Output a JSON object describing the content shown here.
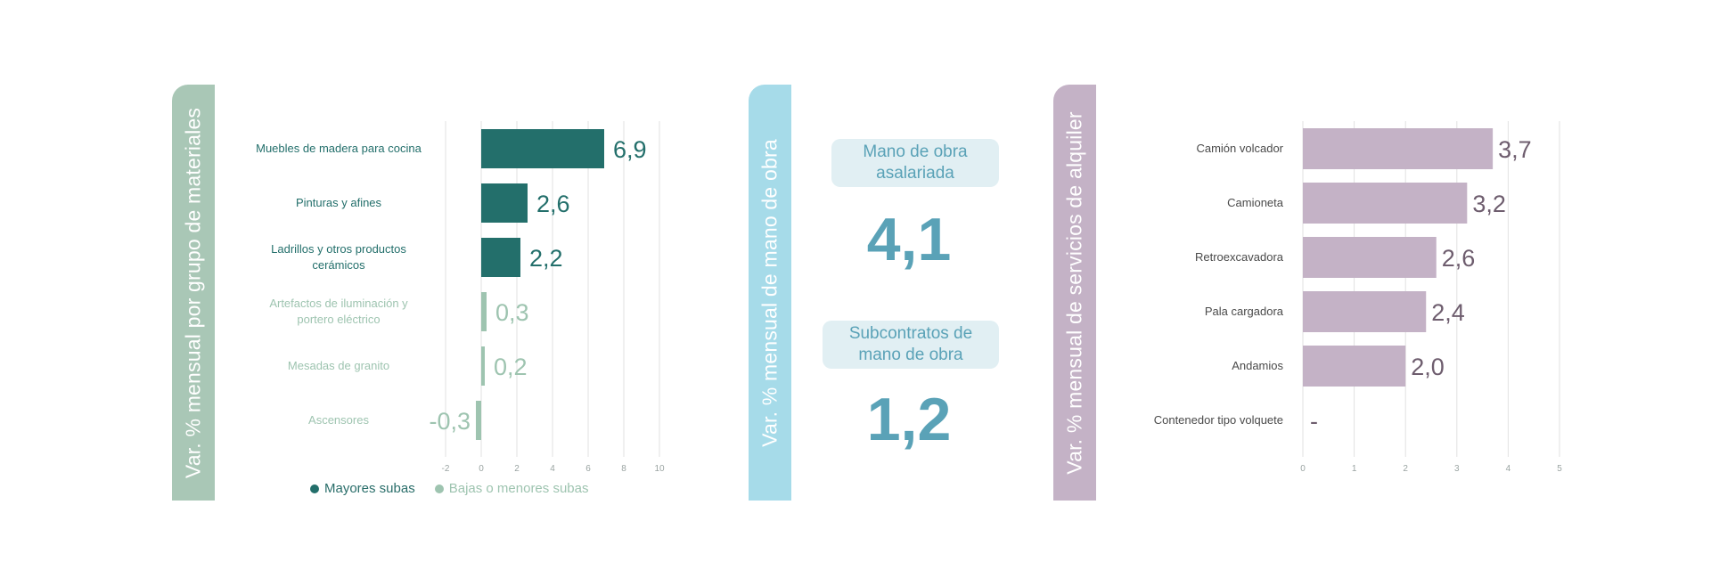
{
  "colors": {
    "green_dark": "#236f6b",
    "green_light": "#9ec4b0",
    "green_tab": "#a9c7b6",
    "blue_tab": "#a6dbe9",
    "blue_text": "#5aa2b7",
    "pill_bg": "#e1eff3",
    "purple_bar": "#c4b2c6",
    "purple_tab": "#c4b2c6",
    "purple_text": "#6e5d6e",
    "grid": "#e2e2e2"
  },
  "panels": {
    "materials_title": "Var. % mensual por grupo de materiales",
    "labor_title": "Var. % mensual de mano de obra",
    "rental_title": "Var. % mensual de servicios de alquiler"
  },
  "labor": {
    "salaried_label": "Mano de obra asalariada",
    "salaried_value": "4,1",
    "subcontract_label": "Subcontratos de mano de obra",
    "subcontract_value": "1,2"
  },
  "legend": {
    "major": "Mayores subas",
    "minor": "Bajas o menores subas"
  },
  "chart_data": [
    {
      "type": "bar",
      "orientation": "horizontal",
      "categories": [
        "Muebles de madera para cocina",
        "Pinturas y afines",
        "Ladrillos y otros productos cerámicos",
        "Artefactos de iluminación y portero eléctrico",
        "Mesadas de granito",
        "Ascensores"
      ],
      "category_lines": [
        [
          "Muebles de madera para cocina"
        ],
        [
          "Pinturas y afines"
        ],
        [
          "Ladrillos y otros productos",
          "cerámicos"
        ],
        [
          "Artefactos de iluminación y",
          "portero eléctrico"
        ],
        [
          "Mesadas de granito"
        ],
        [
          "Ascensores"
        ]
      ],
      "values": [
        6.9,
        2.6,
        2.2,
        0.3,
        0.2,
        -0.3
      ],
      "value_labels": [
        "6,9",
        "2,6",
        "2,2",
        "0,3",
        "0,2",
        "-0,3"
      ],
      "groups": [
        "major",
        "major",
        "major",
        "minor",
        "minor",
        "minor"
      ],
      "xlim": [
        -2,
        10
      ],
      "xticks": [
        -2,
        0,
        2,
        4,
        6,
        8,
        10
      ],
      "xtick_labels": [
        "-2",
        "0",
        "2",
        "4",
        "6",
        "8",
        "10"
      ],
      "grid": true,
      "legend_position": "bottom"
    },
    {
      "type": "bar",
      "orientation": "horizontal",
      "categories": [
        "Camión volcador",
        "Camioneta",
        "Retroexcavadora",
        "Pala cargadora",
        "Andamios",
        "Contenedor tipo volquete"
      ],
      "values": [
        3.7,
        3.2,
        2.6,
        2.4,
        2.0,
        null
      ],
      "value_labels": [
        "3,7",
        "3,2",
        "2,6",
        "2,4",
        "2,0",
        "-"
      ],
      "xlim": [
        0,
        5
      ],
      "xticks": [
        0,
        1,
        2,
        3,
        4,
        5
      ],
      "xtick_labels": [
        "0",
        "1",
        "2",
        "3",
        "4",
        "5"
      ],
      "grid": true
    }
  ]
}
